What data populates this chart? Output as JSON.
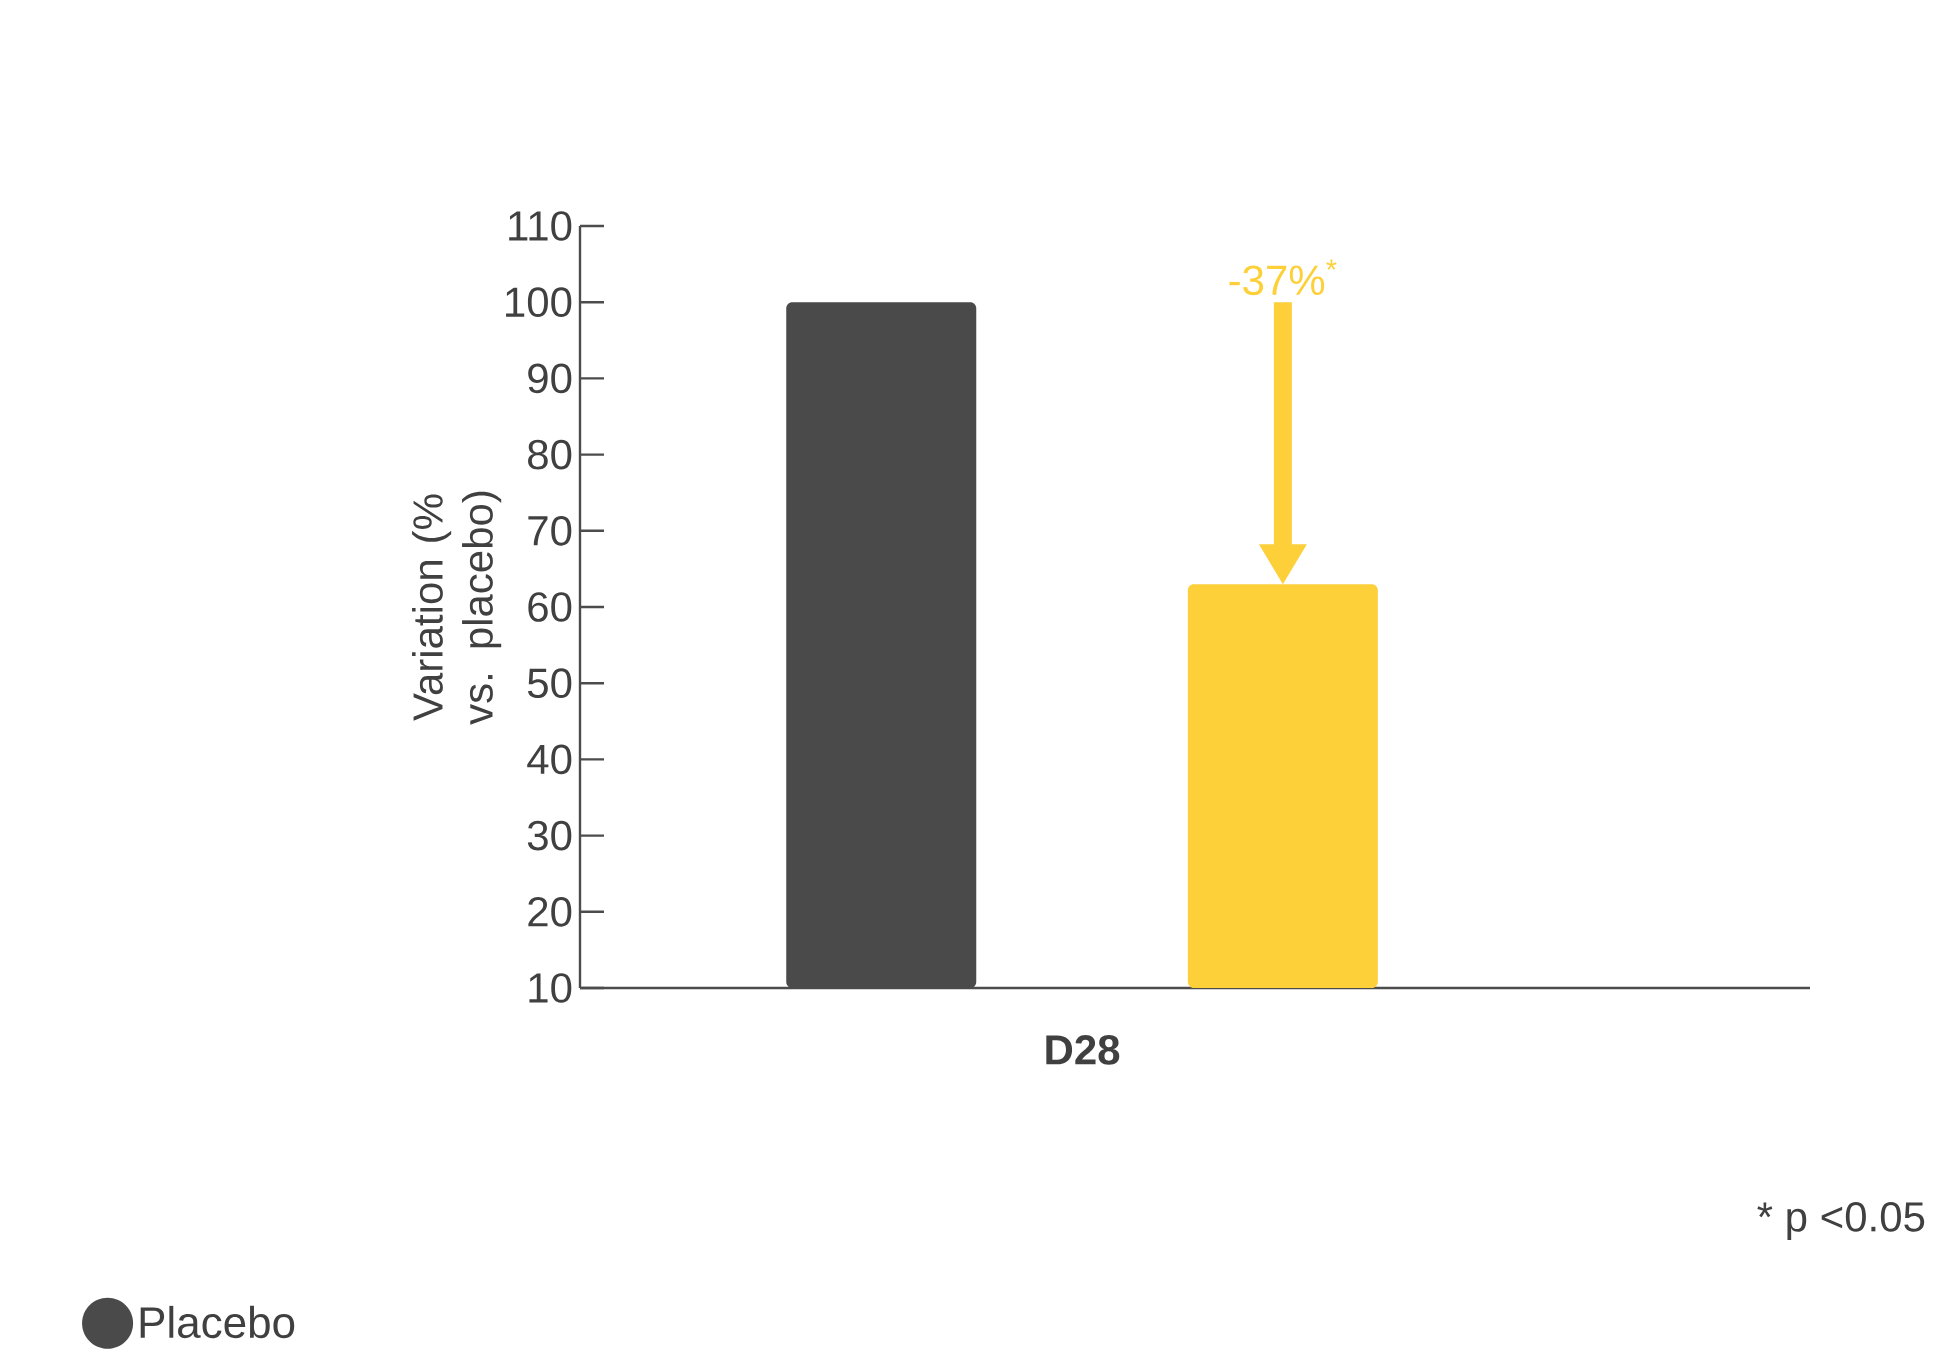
{
  "chart_data": {
    "type": "bar",
    "ylabel": "Variation (% vs. placebo)",
    "categories": [
      "D28"
    ],
    "series": [
      {
        "name": "Placebo",
        "color": "#4a4a4a",
        "values": [
          100
        ]
      },
      {
        "color": "#fdd03a",
        "values": [
          63
        ]
      }
    ],
    "ylim": [
      10,
      110
    ],
    "yticks": [
      10,
      20,
      30,
      40,
      50,
      60,
      70,
      80,
      90,
      100,
      110
    ],
    "legend": "bottom left",
    "annotations": [
      "-37%$^{*}$",
      "* p <0.05"
    ]
  }
}
